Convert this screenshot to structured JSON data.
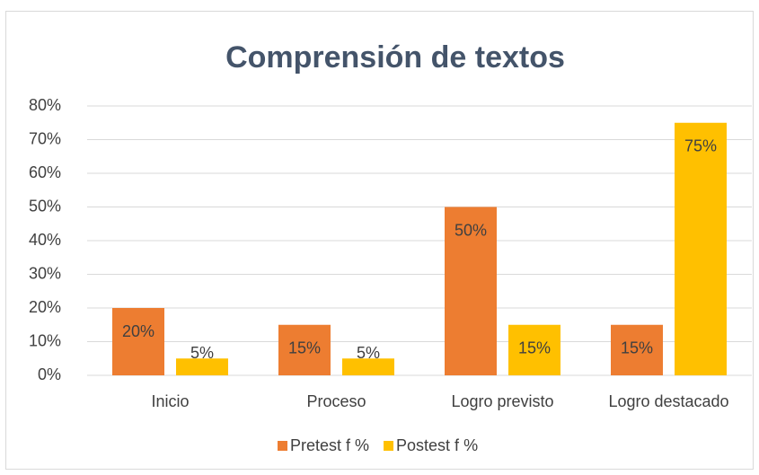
{
  "chart_data": {
    "type": "bar",
    "title": "Comprensión de textos",
    "categories": [
      "Inicio",
      "Proceso",
      "Logro previsto",
      "Logro destacado"
    ],
    "series": [
      {
        "name": "Pretest f %",
        "color": "#ed7d31",
        "values": [
          20,
          15,
          50,
          15
        ],
        "value_labels": [
          "20%",
          "15%",
          "50%",
          "15%"
        ]
      },
      {
        "name": "Postest f %",
        "color": "#ffc000",
        "values": [
          5,
          5,
          15,
          75
        ],
        "value_labels": [
          "5%",
          "5%",
          "15%",
          "75%"
        ]
      }
    ],
    "ylim": [
      0,
      80
    ],
    "yticks": [
      {
        "value": 0,
        "label": "0%"
      },
      {
        "value": 10,
        "label": "10%"
      },
      {
        "value": 20,
        "label": "20%"
      },
      {
        "value": 30,
        "label": "30%"
      },
      {
        "value": 40,
        "label": "40%"
      },
      {
        "value": 50,
        "label": "50%"
      },
      {
        "value": 60,
        "label": "60%"
      },
      {
        "value": 70,
        "label": "70%"
      },
      {
        "value": 80,
        "label": "80%"
      }
    ],
    "grid": true,
    "legend": "bottom"
  }
}
